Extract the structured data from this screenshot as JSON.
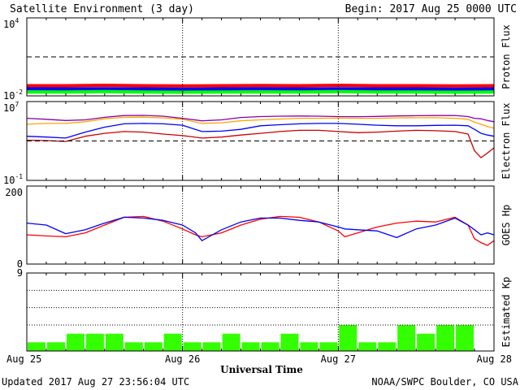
{
  "header": {
    "title": "Satellite Environment (3 day)",
    "begin": "Begin:  2017 Aug 25 0000 UTC"
  },
  "footer": {
    "updated": "Updated 2017 Aug 27 23:56:04 UTC",
    "credit": "NOAA/SWPC Boulder, CO USA"
  },
  "x_axis": {
    "title": "Universal Time",
    "ticks": [
      "Aug 25",
      "Aug 26",
      "Aug 27",
      "Aug 28"
    ]
  },
  "colors": {
    "red": "#ff0000",
    "blue": "#0000ff",
    "green": "#00ff00",
    "orange": "#ffa500",
    "purple": "#8800aa",
    "darkred": "#cc0000",
    "kp_bar": "#33ff00"
  },
  "chart_data": [
    {
      "type": "line",
      "panel": "proton",
      "ylabel": "Proton Flux",
      "yscale": "log",
      "ylim": [
        0.01,
        10000
      ],
      "ytick_labels": [
        {
          "base": "10",
          "exp": "4"
        },
        {
          "base": "10",
          "exp": "-2"
        }
      ],
      "threshold": 10,
      "x": [
        0,
        6,
        12,
        18,
        24,
        30,
        36,
        42,
        48,
        54,
        60,
        66,
        72
      ],
      "series": [
        {
          "color": "red",
          "values": [
            0.06,
            0.06,
            0.065,
            0.06,
            0.058,
            0.06,
            0.062,
            0.06,
            0.065,
            0.06,
            0.06,
            0.058,
            0.06
          ]
        },
        {
          "color": "blue",
          "values": [
            0.035,
            0.034,
            0.035,
            0.034,
            0.033,
            0.034,
            0.035,
            0.034,
            0.035,
            0.034,
            0.034,
            0.033,
            0.034
          ]
        },
        {
          "color": "green",
          "values": [
            0.02,
            0.02,
            0.021,
            0.02,
            0.019,
            0.02,
            0.02,
            0.02,
            0.021,
            0.02,
            0.02,
            0.019,
            0.02
          ]
        }
      ]
    },
    {
      "type": "line",
      "panel": "electron",
      "ylabel": "Electron Flux",
      "yscale": "log",
      "ylim": [
        0.1,
        10000000
      ],
      "ytick_labels": [
        {
          "base": "10",
          "exp": "7"
        },
        {
          "base": "10",
          "exp": "-1"
        }
      ],
      "threshold": 1000,
      "x": [
        0,
        3,
        6,
        9,
        12,
        15,
        18,
        21,
        24,
        27,
        30,
        33,
        36,
        39,
        42,
        45,
        48,
        51,
        54,
        57,
        60,
        63,
        66,
        68,
        69,
        70,
        71,
        72
      ],
      "series": [
        {
          "color": "purple",
          "values": [
            200000,
            160000,
            120000,
            140000,
            250000,
            380000,
            400000,
            330000,
            200000,
            110000,
            140000,
            240000,
            300000,
            330000,
            340000,
            330000,
            300000,
            290000,
            310000,
            350000,
            370000,
            380000,
            390000,
            300000,
            200000,
            180000,
            120000,
            90000
          ]
        },
        {
          "color": "orange",
          "values": [
            50000,
            60000,
            60000,
            90000,
            180000,
            250000,
            260000,
            220000,
            160000,
            60000,
            70000,
            110000,
            140000,
            170000,
            200000,
            200000,
            210000,
            200000,
            200000,
            220000,
            230000,
            230000,
            200000,
            160000,
            80000,
            50000,
            30000,
            20000
          ]
        },
        {
          "color": "blue",
          "values": [
            3000,
            2500,
            2000,
            8000,
            25000,
            55000,
            60000,
            55000,
            40000,
            9000,
            10000,
            15000,
            35000,
            45000,
            55000,
            60000,
            60000,
            50000,
            40000,
            35000,
            35000,
            38000,
            40000,
            35000,
            15000,
            6000,
            4000,
            3000
          ]
        },
        {
          "color": "darkred",
          "values": [
            1200,
            1100,
            900,
            3000,
            6000,
            9000,
            8000,
            5000,
            3500,
            2000,
            2500,
            4000,
            6000,
            9000,
            12000,
            12000,
            9000,
            7000,
            8000,
            10000,
            12000,
            11000,
            9000,
            5000,
            100,
            20,
            60,
            200
          ]
        }
      ]
    },
    {
      "type": "line",
      "panel": "hp",
      "ylabel": "GOES Hp",
      "ylim": [
        0,
        200
      ],
      "ytick_labels": [
        "200",
        "0"
      ],
      "x": [
        0,
        3,
        6,
        9,
        12,
        15,
        18,
        21,
        24,
        26,
        27,
        30,
        33,
        36,
        39,
        42,
        45,
        48,
        49,
        51,
        54,
        57,
        60,
        63,
        66,
        68,
        69,
        70,
        71,
        72
      ],
      "series": [
        {
          "color": "red",
          "values": [
            75,
            72,
            70,
            80,
            100,
            120,
            122,
            110,
            90,
            75,
            70,
            80,
            100,
            115,
            122,
            120,
            108,
            85,
            70,
            80,
            95,
            105,
            110,
            108,
            120,
            100,
            65,
            55,
            48,
            60
          ]
        },
        {
          "color": "blue",
          "values": [
            105,
            100,
            78,
            88,
            105,
            120,
            118,
            112,
            100,
            80,
            60,
            88,
            108,
            118,
            118,
            112,
            108,
            95,
            90,
            88,
            85,
            68,
            90,
            100,
            118,
            100,
            88,
            75,
            80,
            75
          ]
        }
      ]
    },
    {
      "type": "bar",
      "panel": "kp",
      "ylabel": "Estimated Kp",
      "ylim": [
        0,
        9
      ],
      "ytick_labels": [
        "9"
      ],
      "gridlines": [
        3,
        5,
        7
      ],
      "values": [
        1,
        1,
        2,
        2,
        2,
        1,
        1,
        2,
        1,
        1,
        2,
        1,
        1,
        2,
        1,
        1,
        3,
        1,
        1,
        3,
        2,
        3,
        3,
        0
      ]
    }
  ]
}
